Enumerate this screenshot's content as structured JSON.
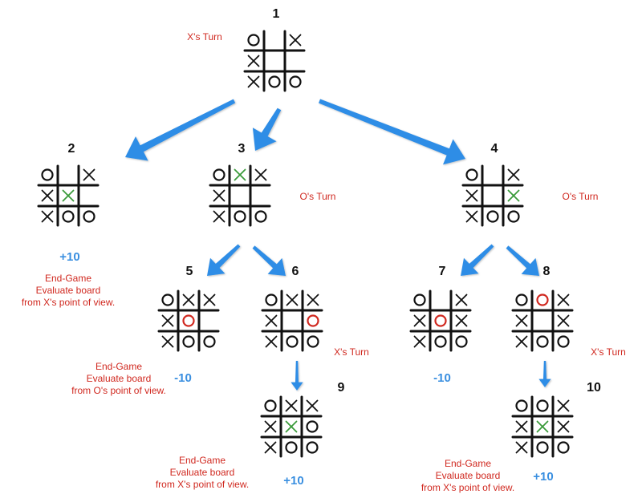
{
  "colors": {
    "arrow": "#2f8de6",
    "grid": "#111111",
    "mark": "#111111",
    "new_x": "#3a9a3a",
    "new_o": "#d0281f",
    "text_red": "#d0281f",
    "score_blue": "#3a8fe0"
  },
  "boards": [
    {
      "id": "b1",
      "number": "1",
      "turn": "X's Turn",
      "cells": [
        [
          "O",
          "",
          "X"
        ],
        [
          "X",
          "",
          ""
        ],
        [
          "X",
          "O",
          "O"
        ]
      ],
      "highlight": []
    },
    {
      "id": "b2",
      "number": "2",
      "turn": "",
      "cells": [
        [
          "O",
          "",
          "X"
        ],
        [
          "X",
          "X",
          ""
        ],
        [
          "X",
          "O",
          "O"
        ]
      ],
      "highlight": [
        [
          1,
          1
        ]
      ]
    },
    {
      "id": "b3",
      "number": "3",
      "turn": "O's Turn",
      "cells": [
        [
          "O",
          "X",
          "X"
        ],
        [
          "X",
          "",
          ""
        ],
        [
          "X",
          "O",
          "O"
        ]
      ],
      "highlight": [
        [
          0,
          1
        ]
      ]
    },
    {
      "id": "b4",
      "number": "4",
      "turn": "O's Turn",
      "cells": [
        [
          "O",
          "",
          "X"
        ],
        [
          "X",
          "",
          "X"
        ],
        [
          "X",
          "O",
          "O"
        ]
      ],
      "highlight": [
        [
          1,
          2
        ]
      ]
    },
    {
      "id": "b5",
      "number": "5",
      "turn": "",
      "cells": [
        [
          "O",
          "X",
          "X"
        ],
        [
          "X",
          "O",
          ""
        ],
        [
          "X",
          "O",
          "O"
        ]
      ],
      "highlight": [
        [
          1,
          1
        ]
      ]
    },
    {
      "id": "b6",
      "number": "6",
      "turn": "X's Turn",
      "cells": [
        [
          "O",
          "X",
          "X"
        ],
        [
          "X",
          "",
          "O"
        ],
        [
          "X",
          "O",
          "O"
        ]
      ],
      "highlight": [
        [
          1,
          2
        ]
      ]
    },
    {
      "id": "b7",
      "number": "7",
      "turn": "",
      "cells": [
        [
          "O",
          "",
          "X"
        ],
        [
          "X",
          "O",
          "X"
        ],
        [
          "X",
          "O",
          "O"
        ]
      ],
      "highlight": [
        [
          1,
          1
        ]
      ]
    },
    {
      "id": "b8",
      "number": "8",
      "turn": "X's Turn",
      "cells": [
        [
          "O",
          "O",
          "X"
        ],
        [
          "X",
          "",
          "X"
        ],
        [
          "X",
          "O",
          "O"
        ]
      ],
      "highlight": [
        [
          0,
          1
        ]
      ]
    },
    {
      "id": "b9",
      "number": "9",
      "turn": "",
      "cells": [
        [
          "O",
          "X",
          "X"
        ],
        [
          "X",
          "X",
          "O"
        ],
        [
          "X",
          "O",
          "O"
        ]
      ],
      "highlight": [
        [
          1,
          1
        ]
      ]
    },
    {
      "id": "b10",
      "number": "10",
      "turn": "",
      "cells": [
        [
          "O",
          "O",
          "X"
        ],
        [
          "X",
          "X",
          "X"
        ],
        [
          "X",
          "O",
          "O"
        ]
      ],
      "highlight": [
        [
          1,
          1
        ]
      ]
    }
  ],
  "scores": {
    "b2": "+10",
    "b5": "-10",
    "b7": "-10",
    "b9": "+10",
    "b10": "+10"
  },
  "notes": {
    "x_view": [
      "End-Game",
      "Evaluate board",
      "from X's point of view."
    ],
    "o_view": [
      "End-Game",
      "Evaluate board",
      "from O's point of view."
    ]
  }
}
